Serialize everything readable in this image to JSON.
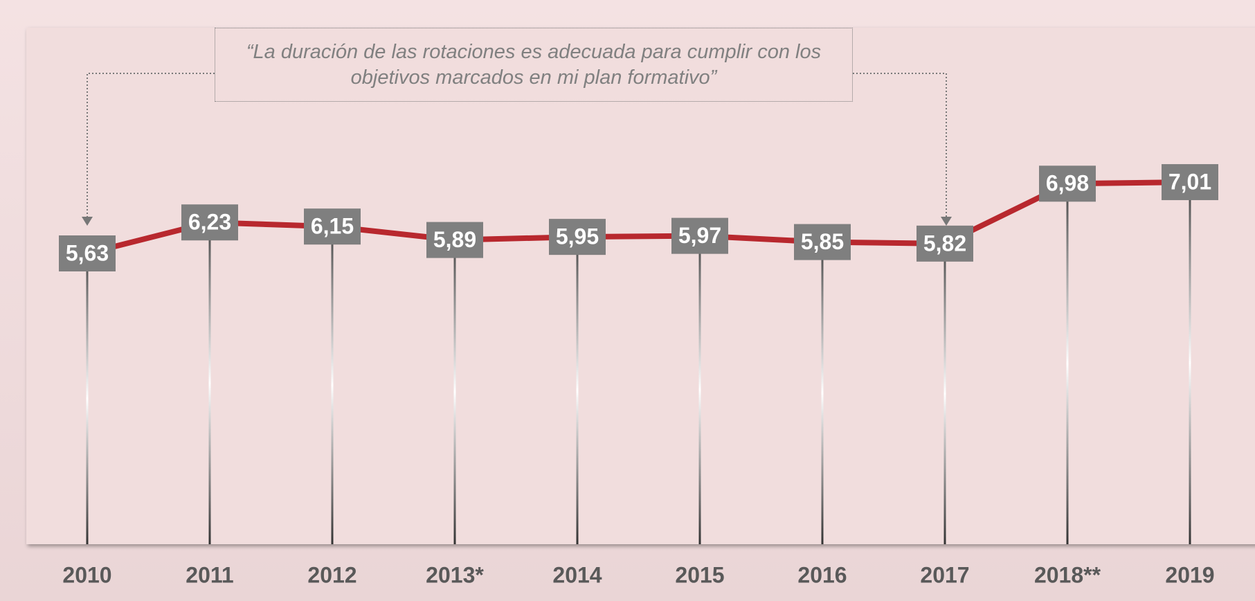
{
  "chart_data": {
    "type": "line",
    "annotation": "“La duración de las rotaciones es adecuada para cumplir con los objetivos marcados en mi plan formativo”",
    "categories": [
      "2010",
      "2011",
      "2012",
      "2013*",
      "2014",
      "2015",
      "2016",
      "2017",
      "2018**",
      "2019"
    ],
    "series": [
      {
        "color": "#b8282e",
        "values": [
          5.63,
          6.23,
          6.15,
          5.89,
          5.95,
          5.97,
          5.85,
          5.82,
          6.98,
          7.01
        ],
        "value_labels": [
          "5,63",
          "6,23",
          "6,15",
          "5,89",
          "5,95",
          "5,97",
          "5,85",
          "5,82",
          "6,98",
          "7,01"
        ]
      }
    ],
    "ylim": [
      0,
      10
    ]
  }
}
